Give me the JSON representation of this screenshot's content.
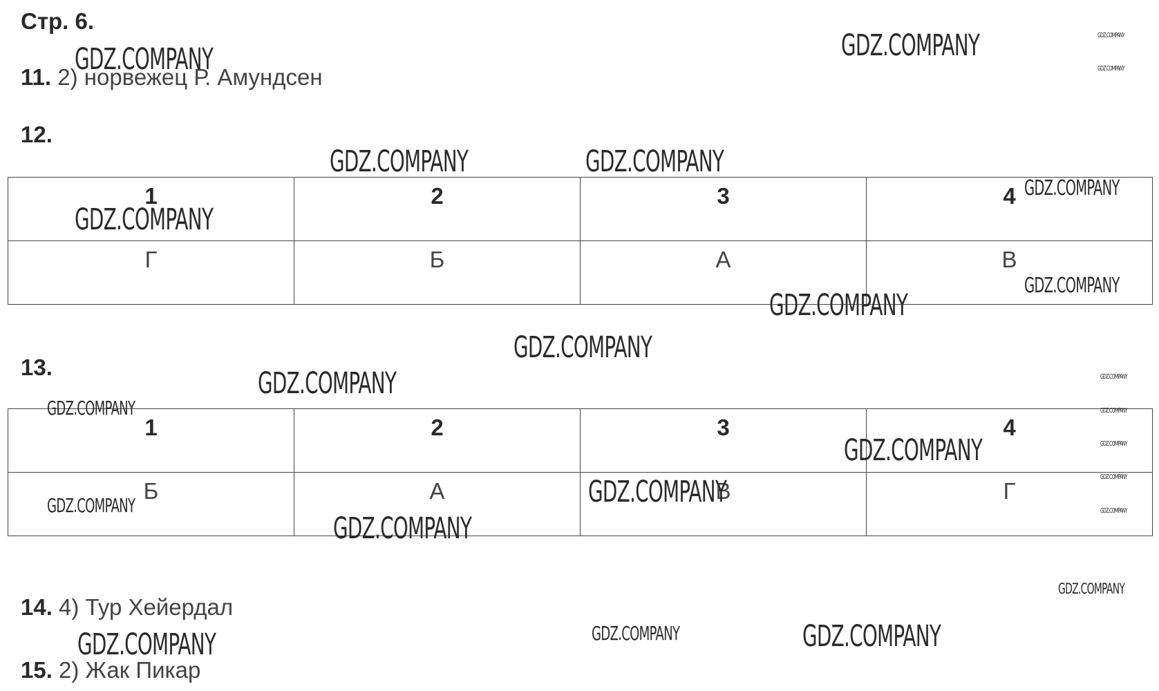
{
  "header": {
    "page": "Стр. 6."
  },
  "task11": {
    "number": "11.",
    "answer": "2) норвежец Р. Амундсен"
  },
  "task12": {
    "number": "12.",
    "table": {
      "header": [
        "1",
        "2",
        "3",
        "4"
      ],
      "row": [
        "Г",
        "Б",
        "А",
        "В"
      ]
    }
  },
  "task13": {
    "number": "13.",
    "table": {
      "header": [
        "1",
        "2",
        "3",
        "4"
      ],
      "row": [
        "Б",
        "А",
        "В",
        "Г"
      ]
    }
  },
  "task14": {
    "number": "14.",
    "answer": "4) Тур Хейердал"
  },
  "task15": {
    "number": "15.",
    "answer": "2) Жак Пикар"
  },
  "watermark": "GDZ.COMPANY"
}
